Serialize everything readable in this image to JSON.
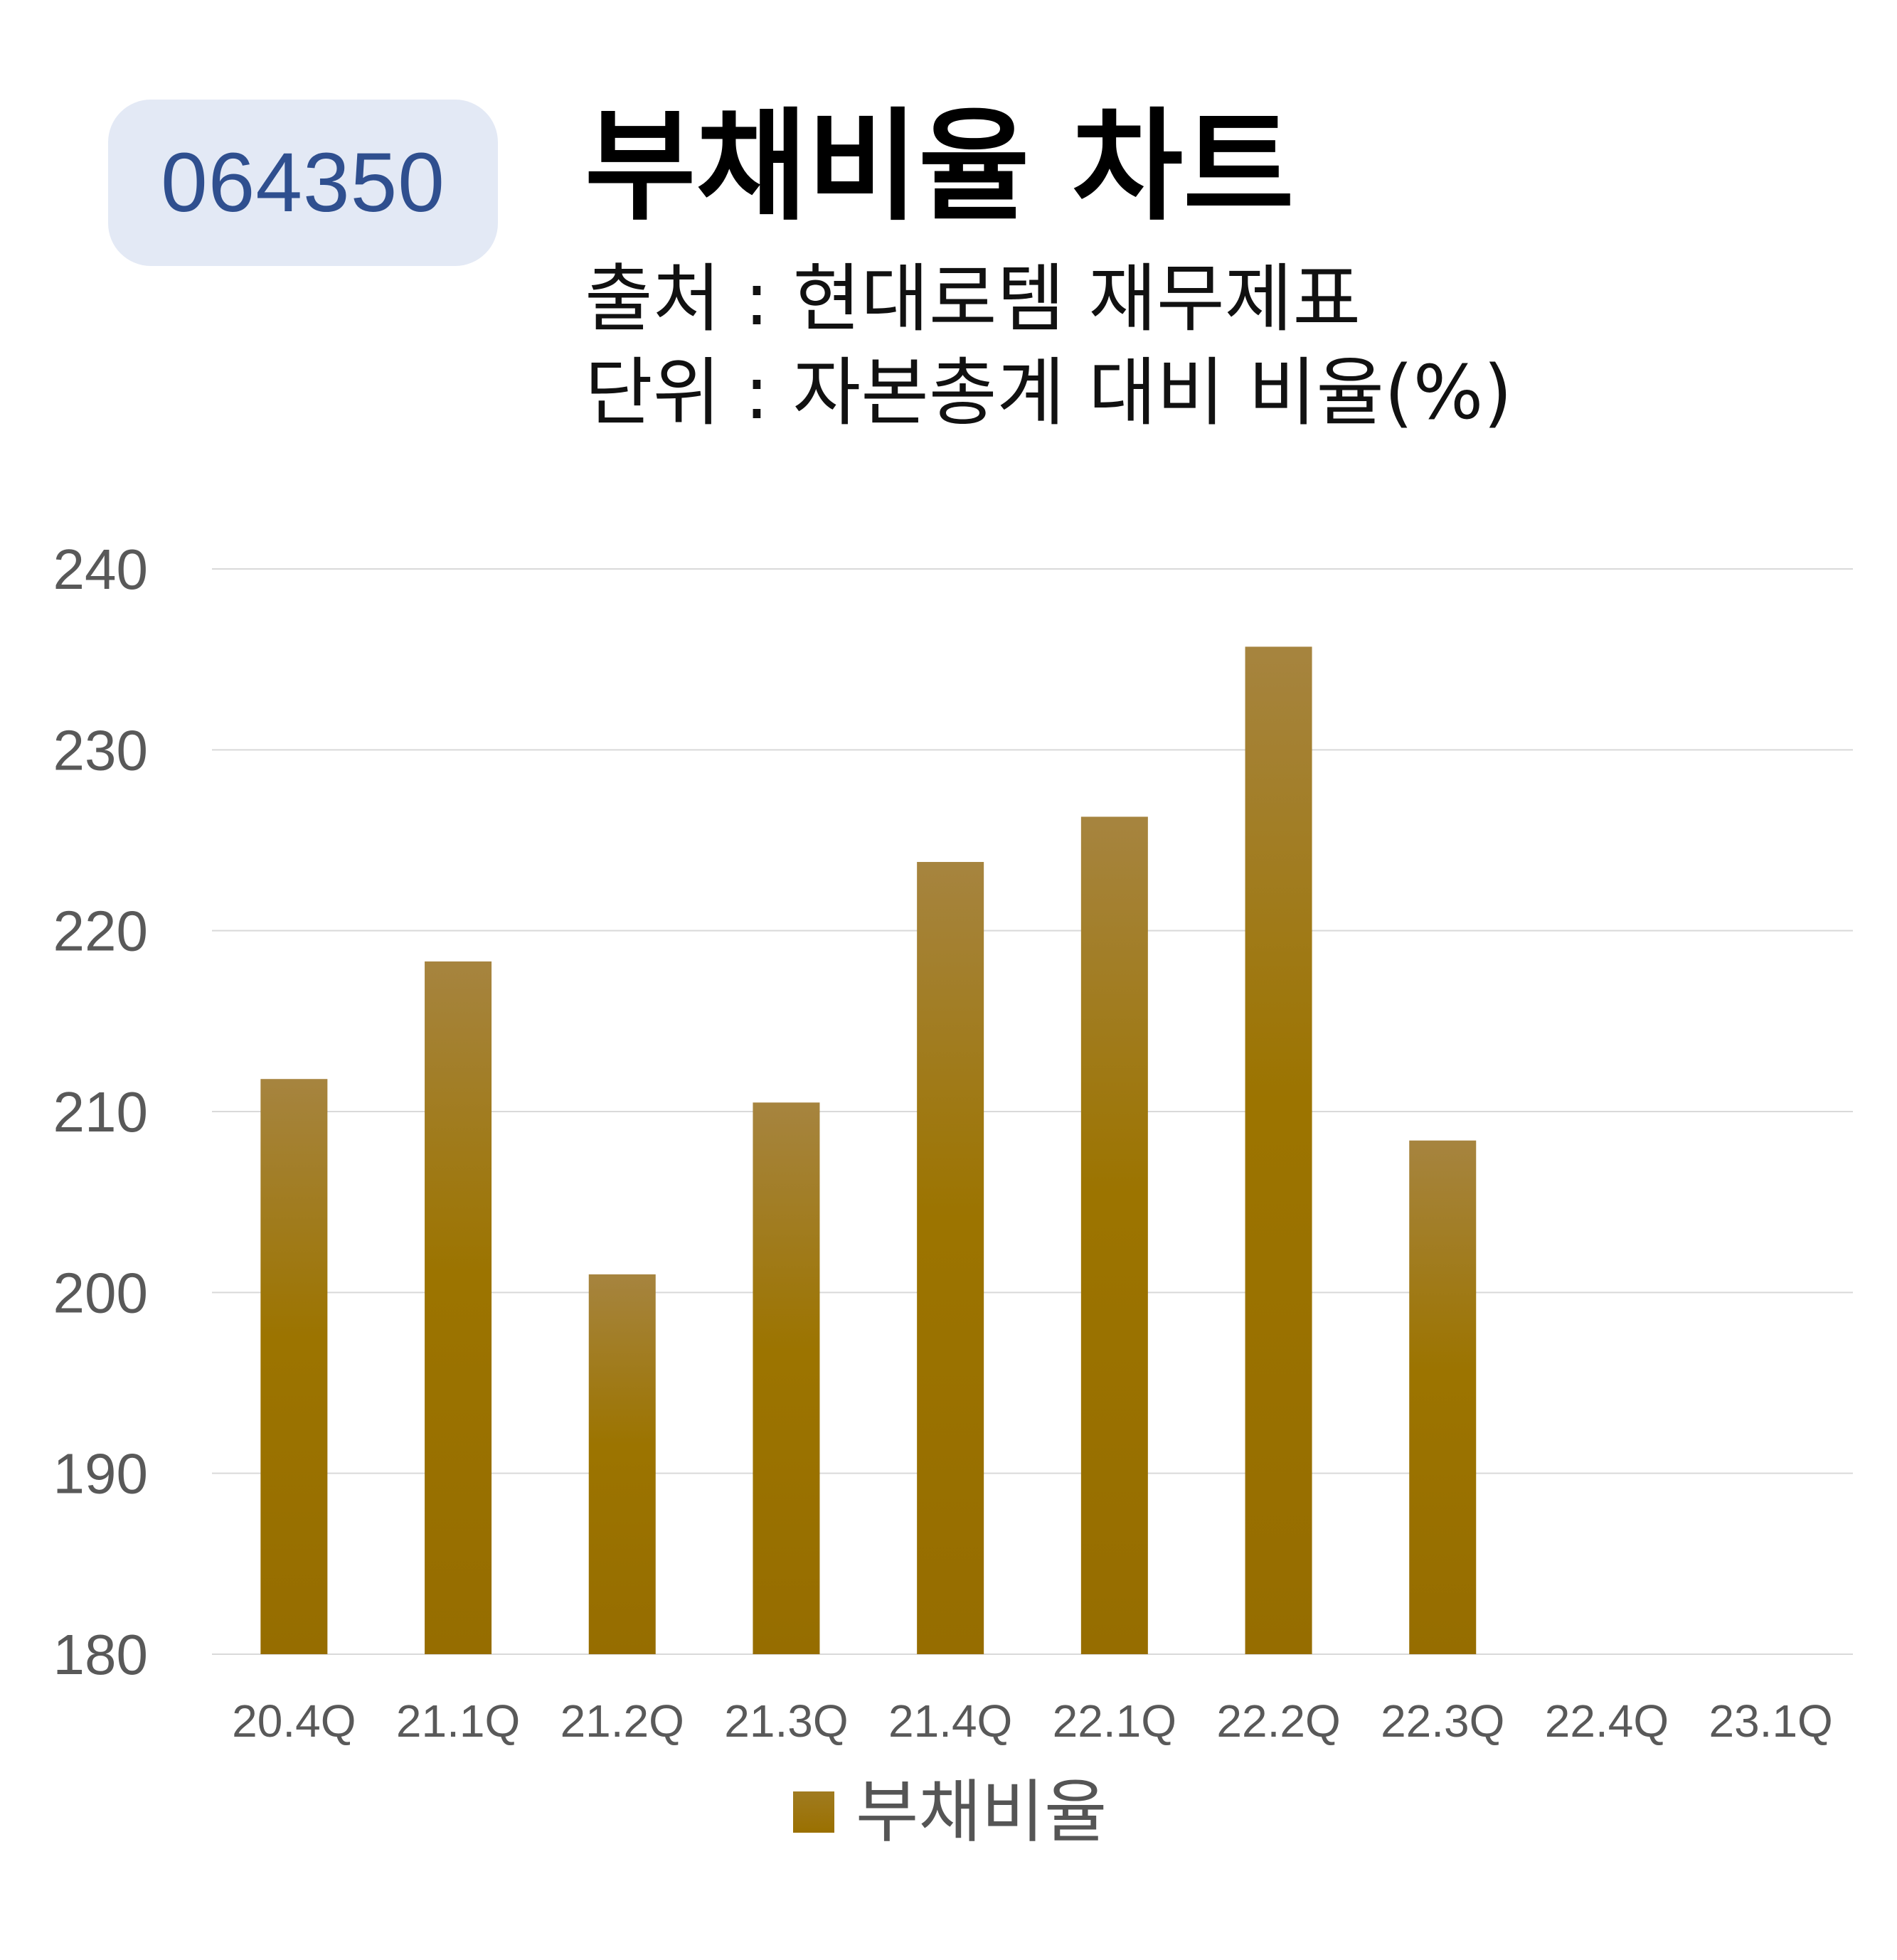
{
  "badge": {
    "code": "064350"
  },
  "header": {
    "title": "부채비율 차트",
    "source": "출처 : 현대로템 재무제표",
    "unit": "단위 : 자본총계 대비 비율(%)"
  },
  "chart_data": {
    "type": "bar",
    "categories": [
      "20.4Q",
      "21.1Q",
      "21.2Q",
      "21.3Q",
      "21.4Q",
      "22.1Q",
      "22.2Q",
      "22.3Q",
      "22.4Q",
      "23.1Q"
    ],
    "series": [
      {
        "name": "부채비율",
        "values": [
          211.8,
          218.3,
          201.0,
          210.5,
          223.8,
          226.3,
          235.7,
          208.4,
          null,
          null
        ]
      }
    ],
    "yticks": [
      "240",
      "230",
      "220",
      "210",
      "200",
      "190",
      "180"
    ],
    "ylim": [
      180,
      240
    ],
    "grid": true,
    "legend_position": "bottom",
    "colors": {
      "bar_top": "#a6843f",
      "bar_bottom": "#9a6f00",
      "grid": "#d9d9d9",
      "tick_text": "#595959"
    }
  }
}
